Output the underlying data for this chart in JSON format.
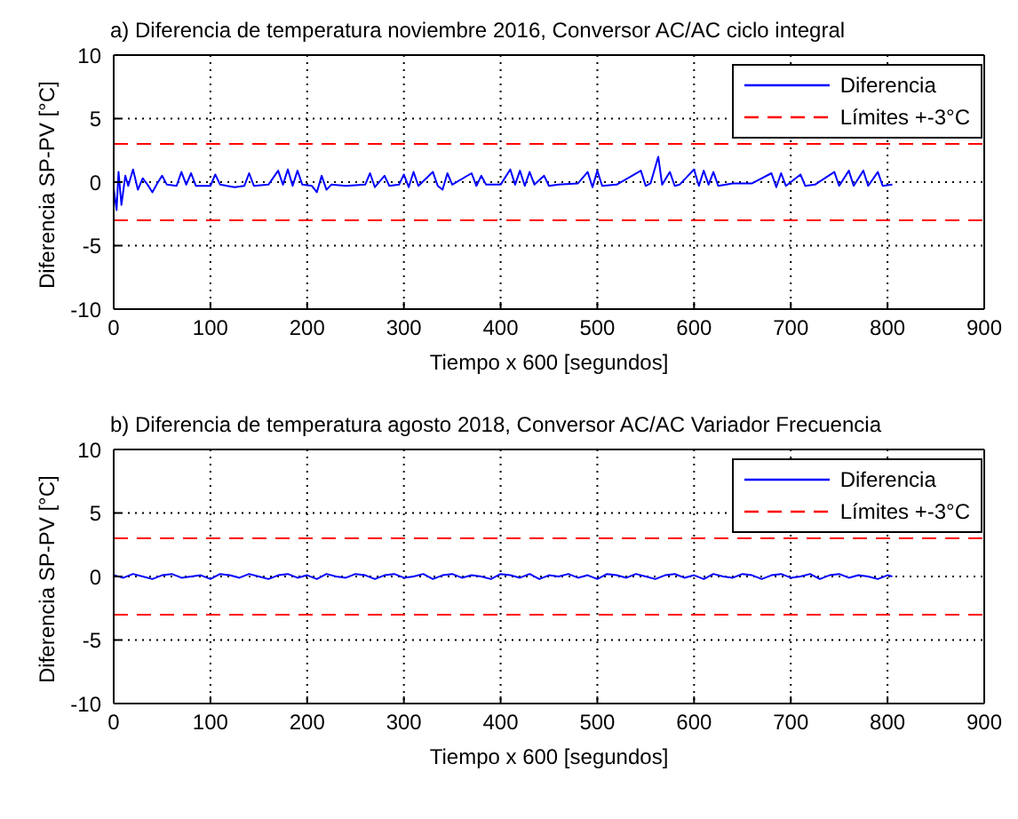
{
  "chart_data": [
    {
      "type": "line",
      "title": "a) Diferencia de temperatura noviembre 2016, Conversor AC/AC ciclo integral",
      "xlabel": "Tiempo x 600 [segundos]",
      "ylabel": "Diferencia SP-PV [°C]",
      "xlim": [
        0,
        900
      ],
      "xticks": [
        0,
        100,
        200,
        300,
        400,
        500,
        600,
        700,
        800,
        900
      ],
      "ylim": [
        -10,
        10
      ],
      "yticks": [
        -10,
        -5,
        0,
        5,
        10
      ],
      "grid": true,
      "legend": "top right",
      "line_style": "solid",
      "marker": "none",
      "series": [
        {
          "name": "Diferencia",
          "color": "#0000ff",
          "x": [
            0,
            3,
            5,
            8,
            12,
            15,
            20,
            25,
            30,
            35,
            40,
            45,
            50,
            55,
            65,
            70,
            75,
            80,
            85,
            100,
            105,
            110,
            125,
            135,
            140,
            145,
            160,
            170,
            175,
            180,
            185,
            190,
            195,
            205,
            210,
            215,
            220,
            225,
            240,
            260,
            265,
            270,
            280,
            285,
            295,
            300,
            305,
            310,
            315,
            330,
            335,
            340,
            345,
            350,
            370,
            375,
            380,
            385,
            400,
            410,
            415,
            420,
            425,
            430,
            435,
            445,
            450,
            460,
            480,
            490,
            495,
            500,
            505,
            520,
            545,
            550,
            555,
            563,
            567,
            575,
            580,
            585,
            600,
            605,
            610,
            615,
            620,
            625,
            640,
            660,
            680,
            685,
            690,
            695,
            710,
            715,
            725,
            745,
            750,
            760,
            765,
            775,
            780,
            790,
            795,
            805
          ],
          "values": [
            -0.5,
            -2.2,
            0.8,
            -1.8,
            0.5,
            -0.3,
            1.0,
            -0.6,
            0.3,
            -0.2,
            -0.8,
            -0.1,
            0.5,
            -0.2,
            -0.3,
            0.8,
            -0.2,
            0.7,
            -0.3,
            -0.3,
            0.6,
            -0.2,
            -0.4,
            -0.3,
            0.7,
            -0.3,
            -0.2,
            0.9,
            -0.2,
            1.0,
            -0.3,
            0.9,
            -0.2,
            -0.3,
            -0.8,
            0.5,
            -0.6,
            -0.2,
            -0.3,
            -0.2,
            0.7,
            -0.4,
            0.5,
            -0.3,
            -0.2,
            0.6,
            -0.4,
            0.8,
            -0.3,
            0.8,
            -0.3,
            -0.6,
            0.7,
            -0.2,
            0.7,
            -0.3,
            0.5,
            -0.2,
            -0.2,
            1.0,
            -0.2,
            0.9,
            -0.3,
            0.8,
            -0.2,
            0.5,
            -0.3,
            -0.2,
            -0.1,
            0.8,
            -0.4,
            0.9,
            -0.3,
            -0.2,
            0.9,
            -0.3,
            -0.1,
            2.0,
            -0.2,
            0.8,
            -0.3,
            -0.2,
            1.0,
            -0.3,
            0.9,
            -0.2,
            0.8,
            -0.3,
            -0.1,
            -0.1,
            0.7,
            -0.4,
            0.7,
            -0.3,
            0.6,
            -0.3,
            -0.2,
            0.8,
            -0.3,
            0.9,
            -0.3,
            0.9,
            -0.3,
            0.8,
            -0.3,
            -0.2
          ]
        }
      ],
      "ref_lines": [
        {
          "axis": "y",
          "value": 3,
          "label": "Límites +-3°C",
          "color": "#ff0000",
          "line_style": "dashed"
        },
        {
          "axis": "y",
          "value": -3,
          "label": null,
          "color": "#ff0000",
          "line_style": "dashed"
        }
      ]
    },
    {
      "type": "line",
      "title": "b) Diferencia de temperatura agosto 2018, Conversor AC/AC Variador Frecuencia",
      "xlabel": "Tiempo x 600 [segundos]",
      "ylabel": "Diferencia SP-PV [°C]",
      "xlim": [
        0,
        900
      ],
      "xticks": [
        0,
        100,
        200,
        300,
        400,
        500,
        600,
        700,
        800,
        900
      ],
      "ylim": [
        -10,
        10
      ],
      "yticks": [
        -10,
        -5,
        0,
        5,
        10
      ],
      "grid": true,
      "legend": "top right",
      "line_style": "solid",
      "marker": "none",
      "series": [
        {
          "name": "Diferencia",
          "color": "#0000ff",
          "x": [
            0,
            10,
            20,
            30,
            40,
            50,
            60,
            70,
            80,
            90,
            100,
            110,
            120,
            130,
            140,
            150,
            160,
            170,
            180,
            190,
            200,
            210,
            220,
            230,
            240,
            250,
            260,
            270,
            280,
            290,
            300,
            310,
            320,
            330,
            340,
            350,
            360,
            370,
            380,
            390,
            400,
            410,
            420,
            430,
            440,
            450,
            460,
            470,
            480,
            490,
            500,
            510,
            520,
            530,
            540,
            550,
            560,
            570,
            580,
            590,
            600,
            610,
            620,
            630,
            640,
            650,
            660,
            670,
            680,
            690,
            700,
            710,
            720,
            730,
            740,
            750,
            760,
            770,
            780,
            790,
            800,
            805
          ],
          "values": [
            0.1,
            -0.1,
            0.2,
            0,
            -0.2,
            0.1,
            0.2,
            -0.1,
            0,
            0.1,
            -0.2,
            0.2,
            0.1,
            -0.1,
            0.2,
            0,
            -0.2,
            0.1,
            0.2,
            -0.1,
            0.1,
            -0.2,
            0.2,
            0,
            -0.1,
            0.2,
            0.1,
            -0.2,
            0.1,
            0.2,
            -0.1,
            0,
            0.2,
            -0.2,
            0.1,
            0.2,
            -0.1,
            0.1,
            0,
            -0.2,
            0.2,
            0.1,
            -0.1,
            0.2,
            -0.2,
            0.1,
            0,
            0.2,
            -0.1,
            0.1,
            -0.2,
            0.2,
            0.1,
            -0.1,
            0.2,
            0,
            -0.2,
            0.1,
            0.2,
            -0.1,
            0.1,
            -0.2,
            0.2,
            0,
            -0.1,
            0.2,
            0.1,
            -0.2,
            0.1,
            0.2,
            -0.1,
            0,
            0.2,
            -0.2,
            0.1,
            0.2,
            -0.1,
            0.1,
            0,
            -0.2,
            0.1,
            0
          ]
        }
      ],
      "ref_lines": [
        {
          "axis": "y",
          "value": 3,
          "label": "Límites +-3°C",
          "color": "#ff0000",
          "line_style": "dashed"
        },
        {
          "axis": "y",
          "value": -3,
          "label": null,
          "color": "#ff0000",
          "line_style": "dashed"
        }
      ]
    }
  ]
}
